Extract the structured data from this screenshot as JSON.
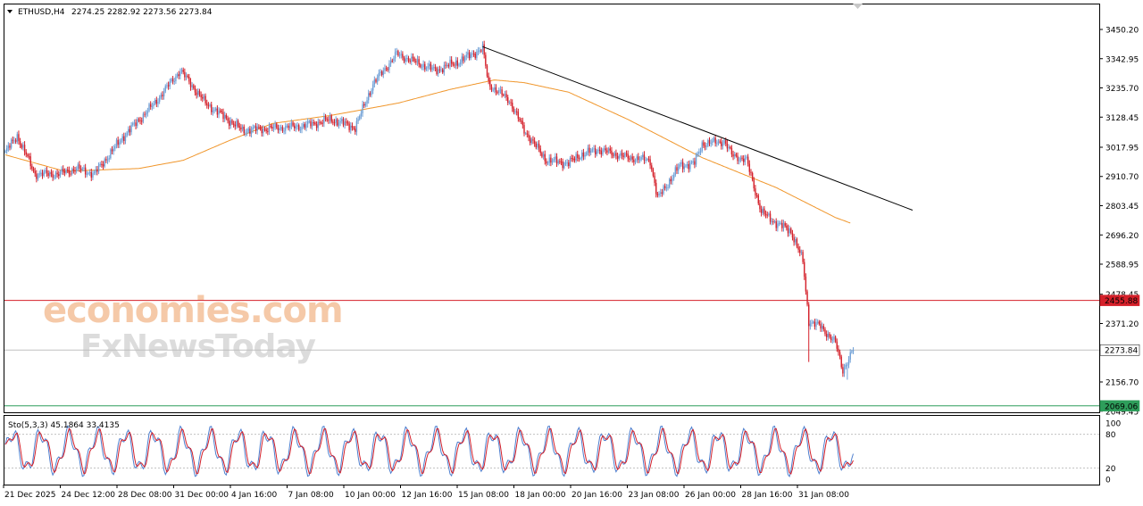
{
  "chart_data": {
    "type": "candlestick",
    "symbol_label": "ETHUSD,H4",
    "ohlc_label": "2274.25 2282.92 2273.56 2273.84",
    "y_ticks": [
      "3450.20",
      "3342.95",
      "3235.70",
      "3128.45",
      "3017.95",
      "2910.70",
      "2803.45",
      "2696.20",
      "2588.95",
      "2478.45",
      "2371.20",
      "2156.70",
      "2049.45"
    ],
    "x_ticks": [
      "21 Dec 2025",
      "24 Dec 12:00",
      "28 Dec 08:00",
      "31 Dec 00:00",
      "4 Jan 16:00",
      "7 Jan 08:00",
      "10 Jan 00:00",
      "12 Jan 16:00",
      "15 Jan 08:00",
      "18 Jan 00:00",
      "20 Jan 16:00",
      "23 Jan 08:00",
      "26 Jan 00:00",
      "28 Jan 16:00",
      "31 Jan 08:00"
    ],
    "price_range": [
      2027,
      3493
    ],
    "up_color": "#6e9fd6",
    "down_color": "#d4202a",
    "closes_anchor": [
      [
        0,
        3000
      ],
      [
        8,
        3060
      ],
      [
        20,
        2920
      ],
      [
        36,
        2920
      ],
      [
        48,
        2940
      ],
      [
        60,
        2920
      ],
      [
        80,
        3060
      ],
      [
        100,
        3175
      ],
      [
        118,
        3300
      ],
      [
        135,
        3180
      ],
      [
        160,
        3080
      ],
      [
        200,
        3095
      ],
      [
        220,
        3120
      ],
      [
        236,
        3090
      ],
      [
        248,
        3250
      ],
      [
        264,
        3360
      ],
      [
        290,
        3300
      ],
      [
        305,
        3330
      ],
      [
        315,
        3360
      ],
      [
        322,
        3380
      ],
      [
        326,
        3250
      ],
      [
        340,
        3190
      ],
      [
        350,
        3080
      ],
      [
        365,
        2970
      ],
      [
        380,
        2960
      ],
      [
        388,
        2990
      ],
      [
        400,
        3010
      ],
      [
        420,
        2980
      ],
      [
        435,
        2970
      ],
      [
        440,
        2830
      ],
      [
        455,
        2950
      ],
      [
        465,
        2960
      ],
      [
        470,
        3030
      ],
      [
        485,
        3040
      ],
      [
        490,
        2990
      ],
      [
        500,
        2970
      ],
      [
        510,
        2780
      ],
      [
        520,
        2740
      ],
      [
        530,
        2710
      ],
      [
        538,
        2600
      ],
      [
        542,
        2380
      ],
      [
        550,
        2360
      ],
      [
        560,
        2300
      ],
      [
        565,
        2200
      ],
      [
        572,
        2273.84
      ]
    ],
    "moving_average": {
      "color": "#f0962b",
      "anchors": [
        [
          0,
          2990
        ],
        [
          40,
          2930
        ],
        [
          90,
          2940
        ],
        [
          120,
          2970
        ],
        [
          150,
          3040
        ],
        [
          180,
          3105
        ],
        [
          220,
          3135
        ],
        [
          265,
          3180
        ],
        [
          300,
          3230
        ],
        [
          330,
          3265
        ],
        [
          350,
          3255
        ],
        [
          380,
          3220
        ],
        [
          420,
          3120
        ],
        [
          470,
          2980
        ],
        [
          520,
          2870
        ],
        [
          560,
          2760
        ],
        [
          570,
          2740
        ]
      ]
    },
    "trendline": {
      "color": "#000000",
      "from": [
        322,
        3387
      ],
      "to": [
        612,
        2787
      ]
    },
    "horizontal_lines": [
      {
        "name": "resistance",
        "price": 2455.88,
        "label": "2455.88",
        "color": "#d4202a"
      },
      {
        "name": "current",
        "price": 2273.84,
        "label": "2273.84",
        "color": "#bfbfbf"
      },
      {
        "name": "support",
        "price": 2069.06,
        "label": "2069.06",
        "color": "#2e9e5b"
      }
    ],
    "stochastic": {
      "label": "Sto(5,3,3) 45.1864 33.4135",
      "params": [
        5,
        3,
        3
      ],
      "main": 45.1864,
      "signal": 33.4135,
      "levels": [
        80,
        20
      ],
      "range": [
        0,
        100
      ],
      "scale_labels": [
        "100",
        "80",
        "20",
        "0"
      ],
      "main_color": "#4e7fcf",
      "signal_color": "#d4202a"
    }
  },
  "watermark": {
    "line1": "economies.com",
    "line2": "FxNewsToday"
  }
}
